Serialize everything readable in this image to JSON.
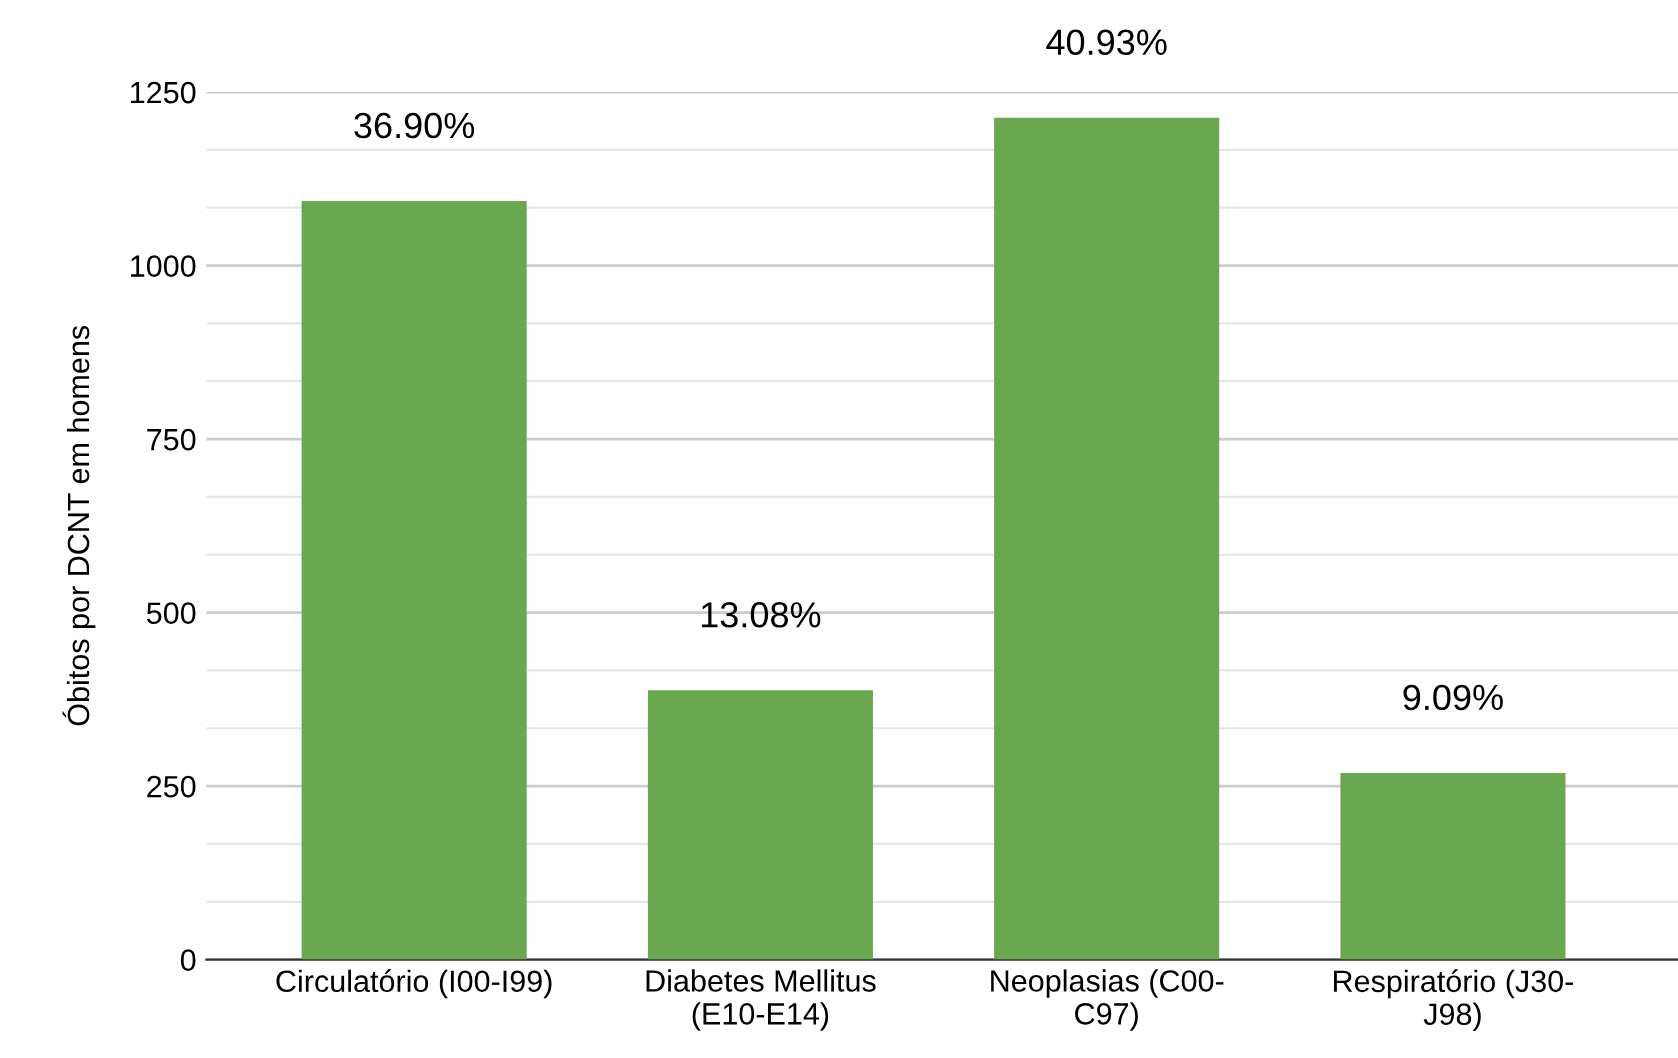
{
  "chart_data": {
    "type": "bar",
    "categories": [
      "Circulatório (I00-I99)",
      "Diabetes Mellitus\n(E10-E14)",
      "Neoplasias (C00-\nC97)",
      "Respiratório (J30-\nJ98)"
    ],
    "values": [
      1093,
      388,
      1213,
      269
    ],
    "annotations": [
      {
        "text": "36.90%",
        "x": "Circulatório (I00-I99)",
        "y": 1093
      },
      {
        "text": "13.08%",
        "x": "Diabetes Mellitus\n(E10-E14)",
        "y": 388
      },
      {
        "text": "40.93%",
        "x": "Neoplasias (C00-\nC97)",
        "y": 1213
      },
      {
        "text": "9.09%",
        "x": "Respiratório (J30-\nJ98)",
        "y": 269
      }
    ],
    "color": "#6aa84f",
    "ylabel": "Óbitos por DCNT em homens",
    "ylim": [
      0,
      1250
    ],
    "yticks": [
      0,
      250,
      500,
      750,
      1000,
      1250
    ],
    "grid": "y"
  }
}
